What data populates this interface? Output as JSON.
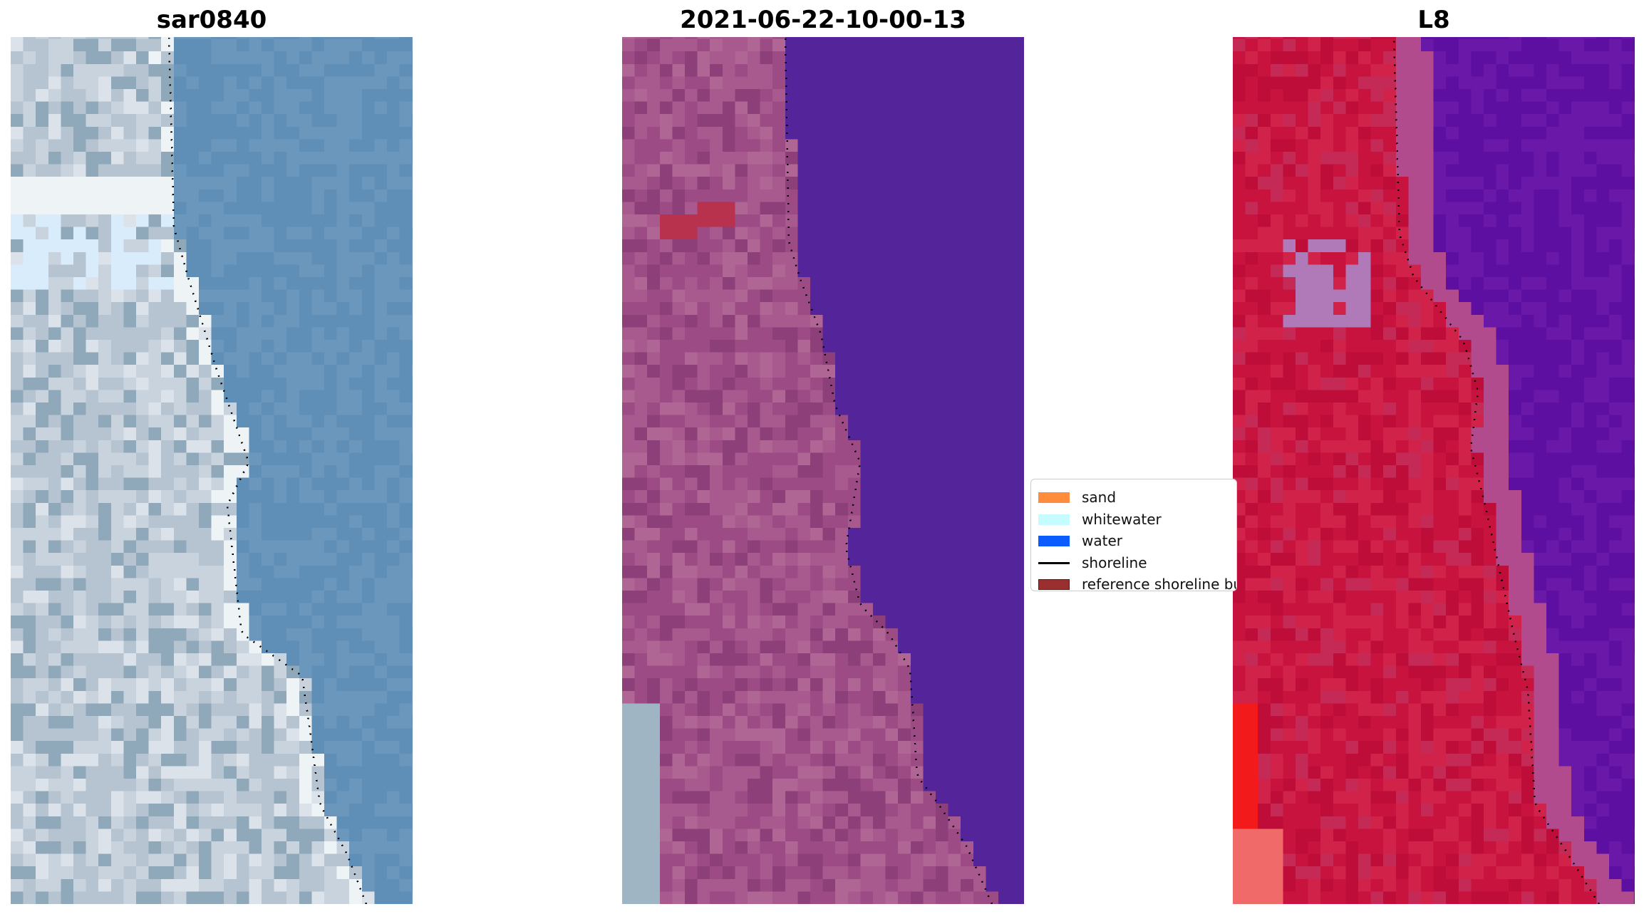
{
  "panels": [
    {
      "title": "sar0840",
      "kind": "rgb",
      "colors": {
        "land_a": "#b6c4d2",
        "land_b": "#c9d3dd",
        "land_c": "#8fa8ba",
        "land_d": "#dbe2e9",
        "water": "#5f8fb7",
        "water_b": "#6b97bd",
        "whitewater": "#eef3f6",
        "bright": "#d8ecfb"
      }
    },
    {
      "title": "2021-06-22-10-00-13",
      "kind": "classified",
      "colors": {
        "land_a": "#9d4b84",
        "land_b": "#a85a8f",
        "land_c": "#8c3f78",
        "land_d": "#b06694",
        "water": "#54249a",
        "corner": "#9fb5c3",
        "patch": "#b8324e"
      }
    },
    {
      "title": "L8",
      "kind": "falsecolor",
      "colors": {
        "land_a": "#c8133f",
        "land_b": "#d1224a",
        "land_c": "#bf0d3a",
        "land_d": "#c42a55",
        "water": "#5c0fa0",
        "water_b": "#6a18a8",
        "transition": "#b24a8e",
        "pink": "#f06a6a",
        "bright_red": "#f21a1a",
        "lavender": "#b07ab8"
      }
    }
  ],
  "legend": {
    "items": [
      {
        "label": "sand",
        "type": "patch",
        "color": "#ff8c3a"
      },
      {
        "label": "whitewater",
        "type": "patch",
        "color": "#c6fcff"
      },
      {
        "label": "water",
        "type": "patch",
        "color": "#0b5cff"
      },
      {
        "label": "shoreline",
        "type": "line",
        "color": "#000000"
      },
      {
        "label": "reference shoreline buffer",
        "type": "patch",
        "color": "#9a2f2f",
        "edge": "#5a1818"
      }
    ]
  }
}
